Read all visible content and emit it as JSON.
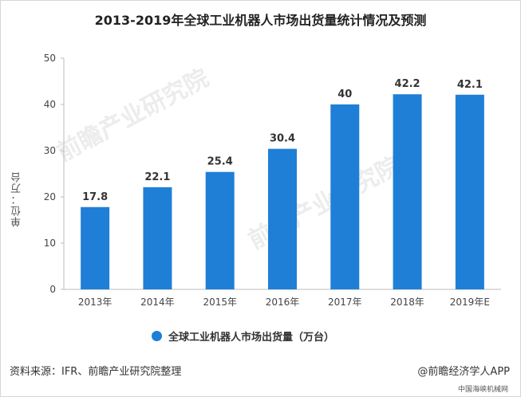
{
  "chart_data": {
    "type": "bar",
    "title": "2013-2019年全球工业机器人市场出货量统计情况及预测",
    "ylabel": "单位：万台",
    "xlabel": "",
    "categories": [
      "2013年",
      "2014年",
      "2015年",
      "2016年",
      "2017年",
      "2018年",
      "2019年E"
    ],
    "series": [
      {
        "name": "全球工业机器人市场出货量（万台）",
        "values": [
          17.8,
          22.1,
          25.4,
          30.4,
          40,
          42.2,
          42.1
        ]
      }
    ],
    "data_labels": [
      "17.8",
      "22.1",
      "25.4",
      "30.4",
      "40",
      "42.2",
      "42.1"
    ],
    "ylim": [
      0,
      50
    ],
    "yticks": [
      "0",
      "10",
      "20",
      "30",
      "40",
      "50"
    ],
    "grid": false,
    "legend_position": "bottom",
    "bar_color": "#1f7fd6"
  },
  "footer": {
    "source": "资料来源：IFR、前瞻产业研究院整理",
    "brand": "@前瞻经济学人APP",
    "site_watermark": "中国海峡机械网"
  },
  "watermarks": [
    "前瞻产业研究院",
    "前瞻产业研究院"
  ]
}
